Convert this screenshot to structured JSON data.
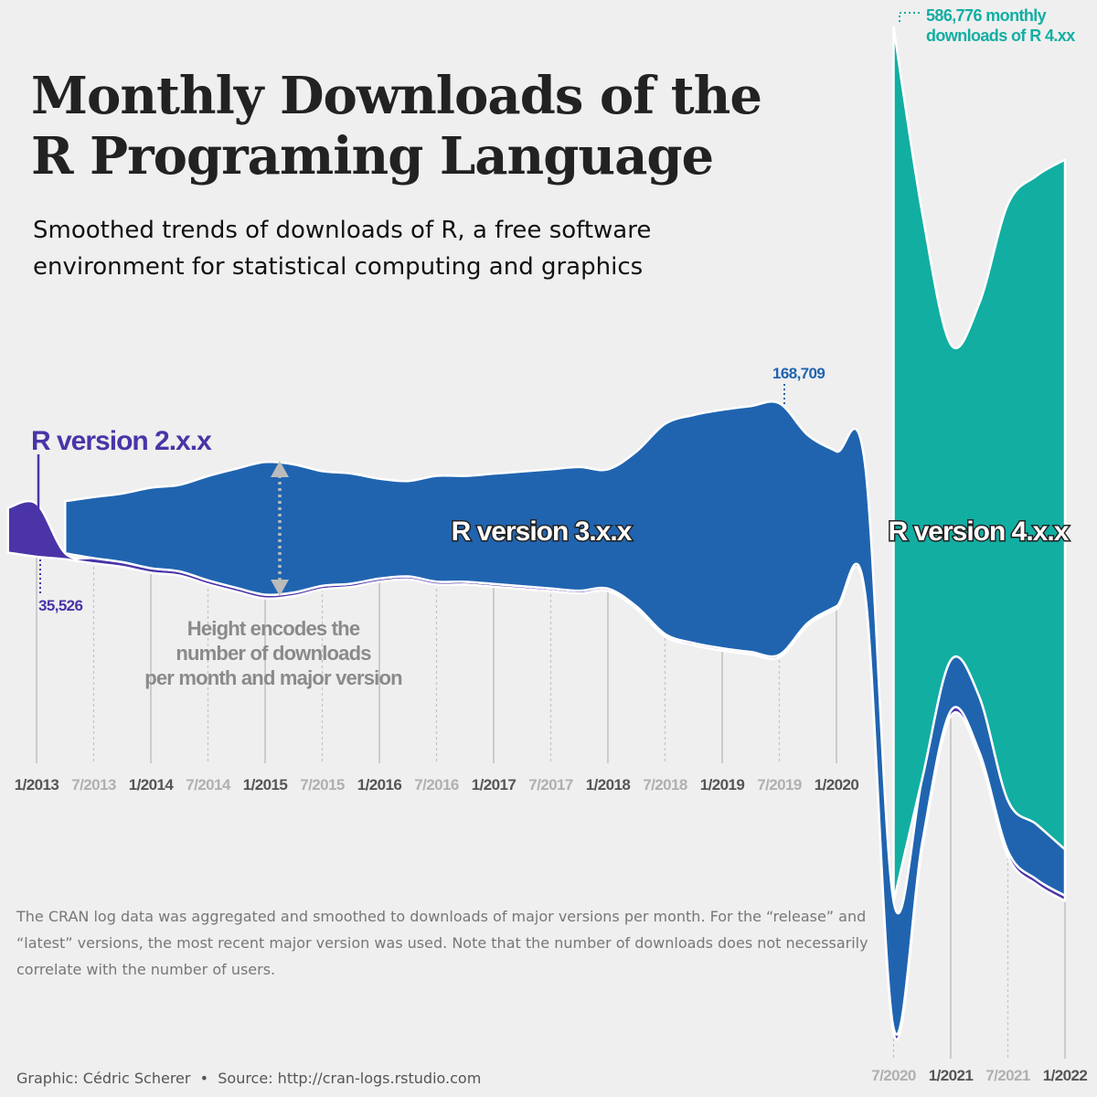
{
  "chart_data": {
    "type": "streamgraph",
    "title": [
      "Monthly Downloads of the",
      "R Programing Language"
    ],
    "subtitle": [
      "Smoothed trends of downloads of R, a free software",
      "environment for statistical computing and graphics"
    ],
    "caption": "The CRAN log data was aggregated and smoothed to downloads of major versions per month. For the “release” and “latest” versions, the most recent major version was used. Note that the number of downloads does not necessarily correlate with the number of users.",
    "credit": "Graphic: Cédric Scherer  •  Source: http://cran-logs.rstudio.com",
    "x": [
      "2012-10",
      "2013-01",
      "2013-04",
      "2013-07",
      "2013-10",
      "2014-01",
      "2014-04",
      "2014-07",
      "2014-10",
      "2015-01",
      "2015-04",
      "2015-07",
      "2015-10",
      "2016-01",
      "2016-04",
      "2016-07",
      "2016-10",
      "2017-01",
      "2017-04",
      "2017-07",
      "2017-10",
      "2018-01",
      "2018-04",
      "2018-07",
      "2018-10",
      "2019-01",
      "2019-04",
      "2019-07",
      "2019-10",
      "2020-01",
      "2020-04",
      "2020-07",
      "2020-10",
      "2021-01",
      "2021-04",
      "2021-07",
      "2021-10",
      "2022-01"
    ],
    "series": [
      {
        "name": "R version 2.x.x",
        "color": "#4a34a8",
        "values": [
          30000,
          35526,
          4000,
          3500,
          3200,
          3000,
          2800,
          2700,
          2600,
          2500,
          2400,
          2300,
          2200,
          2100,
          2000,
          2000,
          1900,
          1900,
          1800,
          1800,
          1800,
          1700,
          1700,
          1700,
          1600,
          1600,
          1600,
          1600,
          1600,
          1800,
          2000,
          3500,
          3500,
          3500,
          3500,
          3500,
          3500,
          3500
        ]
      },
      {
        "name": "R version 3.x.x",
        "color": "#2064b0",
        "values": [
          null,
          null,
          35000,
          41000,
          46000,
          54000,
          58000,
          70000,
          80000,
          89000,
          86000,
          77000,
          74000,
          67000,
          64000,
          71000,
          71000,
          74000,
          77000,
          80000,
          83000,
          80000,
          104000,
          141000,
          153000,
          160000,
          165000,
          168709,
          126000,
          104000,
          86000,
          85000,
          43000,
          34000,
          37000,
          34000,
          37000,
          31000
        ]
      },
      {
        "name": "R version 4.x.x",
        "color": "#12aea2",
        "values": [
          null,
          null,
          null,
          null,
          null,
          null,
          null,
          null,
          null,
          null,
          null,
          null,
          null,
          null,
          null,
          null,
          null,
          null,
          null,
          null,
          null,
          null,
          null,
          null,
          null,
          null,
          null,
          null,
          null,
          null,
          null,
          586776,
          380000,
          212000,
          264000,
          400000,
          435000,
          463000
        ]
      }
    ],
    "annotations": [
      "35,526",
      "168,709"
    ],
    "peak_note": [
      "586,776 monthly",
      "downloads of R 4.xx"
    ],
    "height_note": [
      "Height encodes the",
      "number of downloads",
      "per month and major version"
    ],
    "xticks": [
      {
        "value": "2013-01",
        "label": "1/2013"
      },
      {
        "value": "2013-07",
        "label": "7/2013"
      },
      {
        "value": "2014-01",
        "label": "1/2014"
      },
      {
        "value": "2014-07",
        "label": "7/2014"
      },
      {
        "value": "2015-01",
        "label": "1/2015"
      },
      {
        "value": "2015-07",
        "label": "7/2015"
      },
      {
        "value": "2016-01",
        "label": "1/2016"
      },
      {
        "value": "2016-07",
        "label": "7/2016"
      },
      {
        "value": "2017-01",
        "label": "1/2017"
      },
      {
        "value": "2017-07",
        "label": "7/2017"
      },
      {
        "value": "2018-01",
        "label": "1/2018"
      },
      {
        "value": "2018-07",
        "label": "7/2018"
      },
      {
        "value": "2019-01",
        "label": "1/2019"
      },
      {
        "value": "2019-07",
        "label": "7/2019"
      },
      {
        "value": "2020-01",
        "label": "1/2020"
      },
      {
        "value": "2020-07",
        "label": "7/2020"
      },
      {
        "value": "2021-01",
        "label": "1/2021"
      },
      {
        "value": "2021-07",
        "label": "7/2021"
      },
      {
        "value": "2022-01",
        "label": "1/2022"
      }
    ]
  }
}
